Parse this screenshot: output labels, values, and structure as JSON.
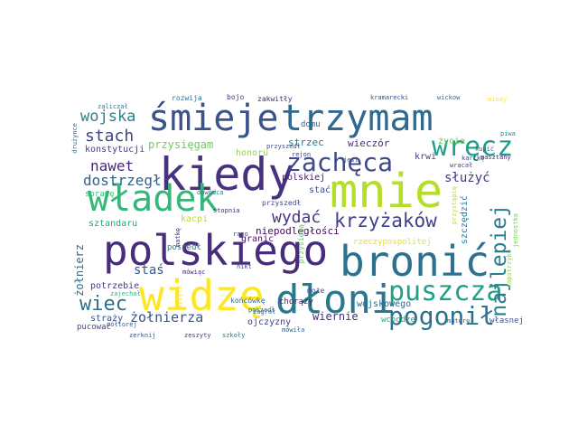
{
  "words": [
    {
      "text": "śmieje",
      "color": "#3b528b"
    },
    {
      "text": "trzymam",
      "color": "#31688e"
    },
    {
      "text": "mnie",
      "color": "#b5de2b"
    },
    {
      "text": "kiedy",
      "color": "#46327e"
    },
    {
      "text": "władek",
      "color": "#35b779"
    },
    {
      "text": "polskiego",
      "color": "#472d7b"
    },
    {
      "text": "bronić",
      "color": "#2c728e"
    },
    {
      "text": "widzę",
      "color": "#fde725"
    },
    {
      "text": "dłoni",
      "color": "#2a788e"
    },
    {
      "text": "zachęca",
      "color": "#3e4989"
    },
    {
      "text": "wręcz",
      "color": "#1f9e89"
    },
    {
      "text": "puszcza",
      "color": "#1fa187"
    },
    {
      "text": "pogonił",
      "color": "#2c728e"
    },
    {
      "text": "krzyżaków",
      "color": "#424086"
    },
    {
      "text": "najlepiej",
      "color": "#287d8e"
    },
    {
      "text": "wojska",
      "color": "#26828e"
    },
    {
      "text": "stach",
      "color": "#414487"
    },
    {
      "text": "przysięgam",
      "color": "#6ece58"
    },
    {
      "text": "dostrzegł",
      "color": "#355f8d"
    },
    {
      "text": "nawet",
      "color": "#482878"
    },
    {
      "text": "wydać",
      "color": "#453882"
    },
    {
      "text": "wiec",
      "color": "#2d708e"
    },
    {
      "text": "żołnierza",
      "color": "#3b528b"
    },
    {
      "text": "staś",
      "color": "#38588c"
    },
    {
      "text": "wiernie",
      "color": "#472c7a"
    },
    {
      "text": "wieczór",
      "color": "#46307e"
    },
    {
      "text": "służyć",
      "color": "#443983"
    },
    {
      "text": "strzec",
      "color": "#2a788e"
    },
    {
      "text": "domu",
      "color": "#31688e"
    },
    {
      "text": "konstytucji",
      "color": "#433e85"
    },
    {
      "text": "sprawę",
      "color": "#3bbb75"
    },
    {
      "text": "sztandaru",
      "color": "#20a486"
    },
    {
      "text": "żołnierz",
      "color": "#2f6c8e"
    },
    {
      "text": "potrzebie",
      "color": "#443983"
    },
    {
      "text": "straży",
      "color": "#39558c"
    },
    {
      "text": "pucować",
      "color": "#404688"
    },
    {
      "text": "honoru",
      "color": "#90d743"
    },
    {
      "text": "polskiej",
      "color": "#48186a"
    },
    {
      "text": "stać",
      "color": "#3e4989"
    },
    {
      "text": "niepodległości",
      "color": "#46085c"
    },
    {
      "text": "rzeczypospolitej",
      "color": "#e5e419"
    },
    {
      "text": "krwi",
      "color": "#424086"
    },
    {
      "text": "życia",
      "color": "#5cc863"
    },
    {
      "text": "szczędzić",
      "color": "#2a768e"
    },
    {
      "text": "wojskowego",
      "color": "#31688e"
    },
    {
      "text": "wchodzę",
      "color": "#22a884"
    },
    {
      "text": "własnej",
      "color": "#3b528b"
    },
    {
      "text": "ojczyzny",
      "color": "#414487"
    },
    {
      "text": "chorąży",
      "color": "#482173"
    },
    {
      "text": "granic",
      "color": "#481668"
    },
    {
      "text": "kacpi",
      "color": "#b5de2b"
    },
    {
      "text": "poszedł",
      "color": "#2a788e"
    },
    {
      "text": "przyszedł",
      "color": "#3e4989"
    },
    {
      "text": "końcówkę",
      "color": "#31688e"
    },
    {
      "text": "zakwitły",
      "color": "#482878"
    },
    {
      "text": "bojo",
      "color": "#443a83"
    },
    {
      "text": "rozwija",
      "color": "#2c728e"
    },
    {
      "text": "zaliczał",
      "color": "#2a788e"
    },
    {
      "text": "kramarecki",
      "color": "#3b528b"
    },
    {
      "text": "wickow",
      "color": "#31688e"
    },
    {
      "text": "miody",
      "color": "#fde725"
    },
    {
      "text": "piwa",
      "color": "#21918c"
    },
    {
      "text": "kartkę",
      "color": "#3e4a89"
    },
    {
      "text": "masztany",
      "color": "#482677"
    },
    {
      "text": "rejon",
      "color": "#424086"
    },
    {
      "text": "może",
      "color": "#3b528b"
    },
    {
      "text": "zeszyty",
      "color": "#443983"
    },
    {
      "text": "szkoły",
      "color": "#2a788e"
    },
    {
      "text": "mówiła",
      "color": "#31688e"
    },
    {
      "text": "mówiąc",
      "color": "#472d7b"
    },
    {
      "text": "matkę",
      "color": "#46337f"
    },
    {
      "text": "maturę",
      "color": "#38598c"
    },
    {
      "text": "wracał",
      "color": "#414487"
    },
    {
      "text": "drużynce",
      "color": "#31688e"
    },
    {
      "text": "półtorej",
      "color": "#38598c"
    },
    {
      "text": "zerknij",
      "color": "#3b528b"
    },
    {
      "text": "poszedł",
      "color": "#2c728e"
    },
    {
      "text": "przysięgą",
      "color": "#5ec962"
    },
    {
      "text": "capstrzyku",
      "color": "#90d743"
    },
    {
      "text": "jednostka",
      "color": "#73d056"
    },
    {
      "text": "przyszedł",
      "color": "#3e4989"
    },
    {
      "text": "zajechał",
      "color": "#35b779"
    },
    {
      "text": "dowódca",
      "color": "#2a788e"
    },
    {
      "text": "wysyła",
      "color": "#fde725"
    },
    {
      "text": "jest",
      "color": "#3b528b"
    },
    {
      "text": "kupić",
      "color": "#31688e"
    },
    {
      "text": "stopnia",
      "color": "#472c7a"
    },
    {
      "text": "nikt",
      "color": "#3b528b"
    },
    {
      "text": "rano",
      "color": "#433e85"
    },
    {
      "text": "zagrał",
      "color": "#31688e"
    },
    {
      "text": "przystąpię",
      "color": "#b5de2b"
    }
  ]
}
